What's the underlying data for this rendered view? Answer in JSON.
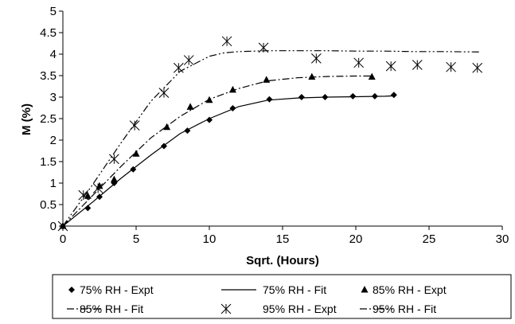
{
  "chart_data": {
    "type": "scatter",
    "xlabel": "Sqrt. (Hours)",
    "ylabel": "M (%)",
    "xlim": [
      0,
      30
    ],
    "ylim": [
      0,
      5
    ],
    "xticks": [
      0,
      5,
      10,
      15,
      20,
      25,
      30
    ],
    "yticks": [
      0,
      0.5,
      1,
      1.5,
      2,
      2.5,
      3,
      3.5,
      4,
      4.5,
      5
    ],
    "grid": false,
    "legend_position": "bottom",
    "series": [
      {
        "name": "75% RH - Expt",
        "kind": "points",
        "marker": "diamond",
        "x": [
          0,
          1.7,
          2.5,
          3.5,
          4.8,
          6.9,
          8.5,
          10.0,
          11.6,
          14.1,
          16.3,
          17.9,
          19.8,
          21.3,
          22.6
        ],
        "y": [
          0,
          0.42,
          0.68,
          1.0,
          1.32,
          1.86,
          2.22,
          2.47,
          2.74,
          2.95,
          3.0,
          3.0,
          3.02,
          3.02,
          3.05
        ]
      },
      {
        "name": "75% RH - Fit",
        "kind": "line",
        "dash": "solid",
        "x": [
          0,
          2,
          4,
          6,
          8,
          10,
          12,
          14,
          16,
          18,
          20,
          22,
          22.6
        ],
        "y": [
          0,
          0.55,
          1.12,
          1.65,
          2.15,
          2.5,
          2.78,
          2.93,
          2.98,
          3.0,
          3.01,
          3.02,
          3.03
        ]
      },
      {
        "name": "85% RH - Expt",
        "kind": "points",
        "marker": "triangle",
        "x": [
          0,
          1.7,
          2.5,
          3.5,
          5.0,
          7.1,
          8.7,
          10.0,
          11.6,
          13.9,
          17.0,
          21.1
        ],
        "y": [
          0,
          0.7,
          0.93,
          1.08,
          1.68,
          2.3,
          2.77,
          2.93,
          3.17,
          3.4,
          3.47,
          3.47
        ]
      },
      {
        "name": "85% RH - Fit",
        "kind": "line",
        "dash": "dashdot",
        "x": [
          0,
          2,
          4,
          6,
          8,
          10,
          12,
          14,
          16,
          18,
          20,
          21.1
        ],
        "y": [
          0,
          0.7,
          1.4,
          2.05,
          2.55,
          2.95,
          3.2,
          3.38,
          3.45,
          3.48,
          3.49,
          3.49
        ]
      },
      {
        "name": "95% RH - Expt",
        "kind": "points",
        "marker": "asterisk",
        "x": [
          0,
          1.4,
          2.4,
          3.5,
          4.9,
          6.9,
          7.9,
          8.6,
          11.2,
          13.7,
          17.3,
          20.2,
          22.4,
          24.2,
          26.5,
          28.3
        ],
        "y": [
          0,
          0.72,
          0.88,
          1.56,
          2.34,
          3.1,
          3.68,
          3.86,
          4.3,
          4.15,
          3.9,
          3.8,
          3.72,
          3.75,
          3.7,
          3.68
        ]
      },
      {
        "name": "95% RH - Fit",
        "kind": "line",
        "dash": "dashdotdot",
        "x": [
          0,
          2,
          4,
          6,
          8,
          10,
          11,
          12,
          14,
          16,
          18,
          20,
          22,
          24,
          26,
          28.5
        ],
        "y": [
          0,
          0.95,
          1.95,
          2.9,
          3.6,
          3.95,
          4.03,
          4.06,
          4.08,
          4.08,
          4.08,
          4.07,
          4.07,
          4.06,
          4.06,
          4.05
        ]
      }
    ]
  },
  "legend": {
    "items": [
      {
        "symbol": "diamond",
        "label": "75% RH - Expt"
      },
      {
        "symbol": "solid",
        "label": "75% RH - Fit"
      },
      {
        "symbol": "triangle",
        "label": "85% RH - Expt"
      },
      {
        "symbol": "dashdot",
        "label": "85% RH - Fit"
      },
      {
        "symbol": "asterisk",
        "label": "95% RH - Expt"
      },
      {
        "symbol": "dashdotdot",
        "label": "95% RH - Fit"
      }
    ]
  }
}
